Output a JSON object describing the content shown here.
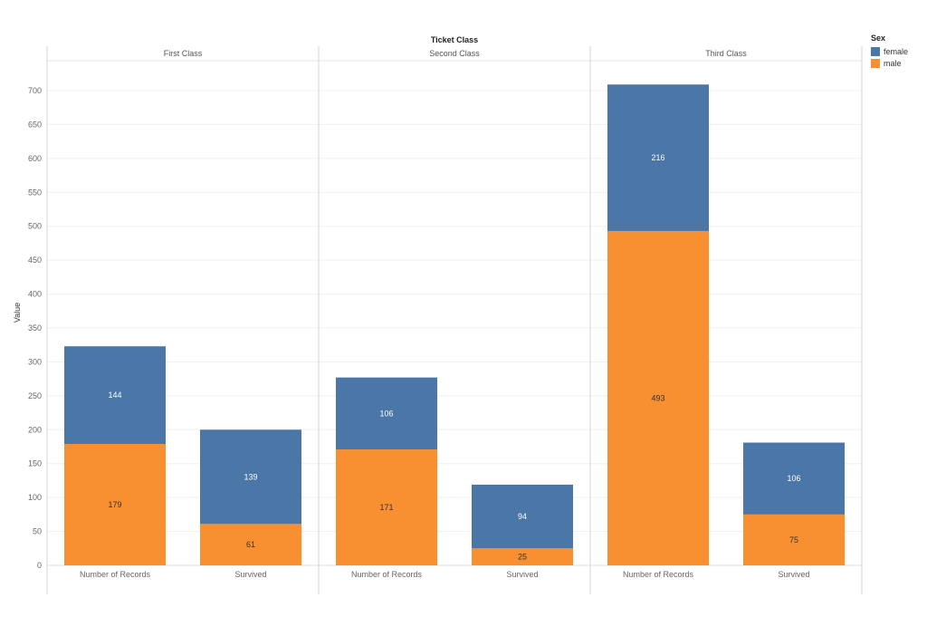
{
  "chart_data": {
    "type": "bar",
    "stacked": true,
    "column_header_title": "Ticket Class",
    "panels": [
      "First Class",
      "Second Class",
      "Third Class"
    ],
    "categories": [
      "Number of Records",
      "Survived"
    ],
    "ylabel": "Value",
    "ylim": [
      0,
      750
    ],
    "yticks": [
      0,
      50,
      100,
      150,
      200,
      250,
      300,
      350,
      400,
      450,
      500,
      550,
      600,
      650,
      700
    ],
    "legend": {
      "title": "Sex",
      "position": "top-right"
    },
    "series": [
      {
        "name": "male",
        "color": "#f89031",
        "values": [
          [
            179,
            61
          ],
          [
            171,
            25
          ],
          [
            493,
            75
          ]
        ]
      },
      {
        "name": "female",
        "color": "#4a76a8",
        "values": [
          [
            144,
            139
          ],
          [
            106,
            94
          ],
          [
            216,
            106
          ]
        ]
      }
    ],
    "grid": true
  }
}
